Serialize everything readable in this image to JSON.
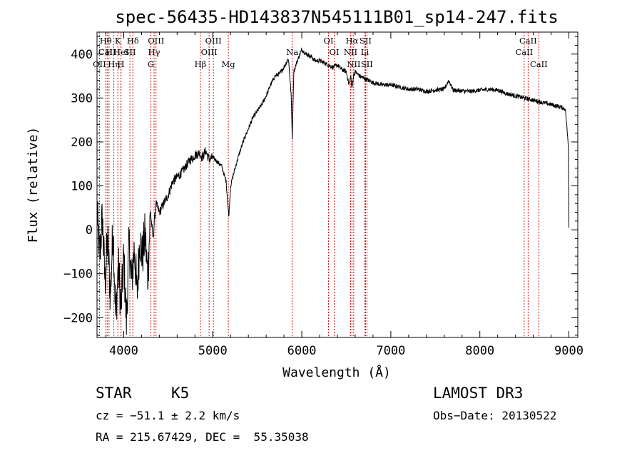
{
  "chart_data": {
    "type": "line",
    "title": "spec-56435-HD143837N545111B01_sp14-247.fits",
    "xlabel": "Wavelength (Å)",
    "ylabel": "Flux (relative)",
    "xlim": [
      3700,
      9100
    ],
    "ylim": [
      -245,
      450
    ],
    "xticks": [
      4000,
      5000,
      6000,
      7000,
      8000,
      9000
    ],
    "yticks": [
      -200,
      -100,
      0,
      100,
      200,
      300,
      400
    ],
    "grid": false,
    "series": [
      {
        "x": [
          3700,
          3730,
          3760,
          3790,
          3820,
          3850,
          3880,
          3910,
          3940,
          3970,
          4000,
          4030,
          4060,
          4090,
          4120,
          4150,
          4180,
          4210,
          4240,
          4270,
          4300,
          4330,
          4360,
          4400,
          4450,
          4500,
          4550,
          4600,
          4650,
          4700,
          4750,
          4800,
          4850,
          4880,
          4920,
          4960,
          5000,
          5050,
          5100,
          5150,
          5180,
          5200,
          5250,
          5300,
          5350,
          5400,
          5450,
          5500,
          5550,
          5600,
          5650,
          5700,
          5750,
          5800,
          5850,
          5880,
          5893,
          5910,
          5950,
          6000,
          6050,
          6100,
          6150,
          6200,
          6250,
          6300,
          6350,
          6400,
          6450,
          6500,
          6530,
          6550,
          6563,
          6580,
          6600,
          6650,
          6700,
          6750,
          6800,
          6900,
          7000,
          7100,
          7200,
          7300,
          7400,
          7500,
          7600,
          7650,
          7700,
          7800,
          7900,
          8000,
          8100,
          8200,
          8300,
          8400,
          8500,
          8600,
          8700,
          8800,
          8900,
          8960,
          8995,
          9000
        ],
        "y": [
          40,
          -60,
          30,
          -120,
          -20,
          -150,
          10,
          -200,
          -80,
          -180,
          -60,
          -210,
          -30,
          -120,
          -40,
          -150,
          -20,
          -60,
          -10,
          -110,
          40,
          -20,
          60,
          40,
          60,
          80,
          110,
          120,
          130,
          145,
          160,
          170,
          175,
          165,
          180,
          160,
          165,
          155,
          145,
          110,
          30,
          100,
          140,
          175,
          205,
          230,
          255,
          270,
          285,
          305,
          330,
          350,
          355,
          370,
          390,
          310,
          210,
          360,
          385,
          410,
          400,
          395,
          385,
          385,
          380,
          375,
          370,
          375,
          365,
          360,
          330,
          350,
          320,
          350,
          360,
          350,
          345,
          340,
          335,
          330,
          330,
          325,
          320,
          320,
          315,
          318,
          320,
          340,
          318,
          316,
          315,
          318,
          320,
          318,
          310,
          305,
          300,
          295,
          290,
          285,
          280,
          275,
          190,
          5
        ]
      }
    ],
    "lines": [
      {
        "name": "Hθ",
        "x": 3798,
        "row": 1
      },
      {
        "name": "CaII",
        "x": 3814,
        "row": 2
      },
      {
        "name": "OII",
        "x": 3727,
        "row": 3
      },
      {
        "name": "H",
        "x": 3835,
        "row": 2
      },
      {
        "name": "Hη",
        "x": 3889,
        "row": 3
      },
      {
        "name": "K",
        "x": 3934,
        "row": 1
      },
      {
        "name": "HeI",
        "x": 3970,
        "row": 2
      },
      {
        "name": "H",
        "x": 3968,
        "row": 3
      },
      {
        "name": "SII",
        "x": 4069,
        "row": 2
      },
      {
        "name": "Hδ",
        "x": 4102,
        "row": 1
      },
      {
        "name": "OIII",
        "x": 4363,
        "row": 1
      },
      {
        "name": "Hγ",
        "x": 4341,
        "row": 2
      },
      {
        "name": "G",
        "x": 4305,
        "row": 3
      },
      {
        "name": "Hβ",
        "x": 4861,
        "row": 3
      },
      {
        "name": "OIII",
        "x": 4959,
        "row": 2
      },
      {
        "name": "OIII",
        "x": 5007,
        "row": 1
      },
      {
        "name": "Mg",
        "x": 5175,
        "row": 3
      },
      {
        "name": "Na",
        "x": 5893,
        "row": 2
      },
      {
        "name": "OI",
        "x": 6300,
        "row": 1
      },
      {
        "name": "OI",
        "x": 6364,
        "row": 2
      },
      {
        "name": "Hα",
        "x": 6563,
        "row": 1
      },
      {
        "name": "NII",
        "x": 6548,
        "row": 2
      },
      {
        "name": "NII",
        "x": 6583,
        "row": 3
      },
      {
        "name": "SII",
        "x": 6716,
        "row": 1
      },
      {
        "name": "Li",
        "x": 6708,
        "row": 2
      },
      {
        "name": "SII",
        "x": 6731,
        "row": 3
      },
      {
        "name": "CaII",
        "x": 8542,
        "row": 1
      },
      {
        "name": "CaII",
        "x": 8498,
        "row": 2
      },
      {
        "name": "CaII",
        "x": 8662,
        "row": 3
      }
    ]
  },
  "info": {
    "class": "STAR",
    "subclass": "K5",
    "survey": "LAMOST DR3",
    "cz": "cz = −51.1 ± 2.2 km/s",
    "obs_date": "Obs−Date: 20130522",
    "radec": "RA = 215.67429, DEC =  55.35038"
  },
  "colors": {
    "spectrum": "#000000",
    "line_marker": "#cc0000",
    "background": "#ffffff"
  }
}
